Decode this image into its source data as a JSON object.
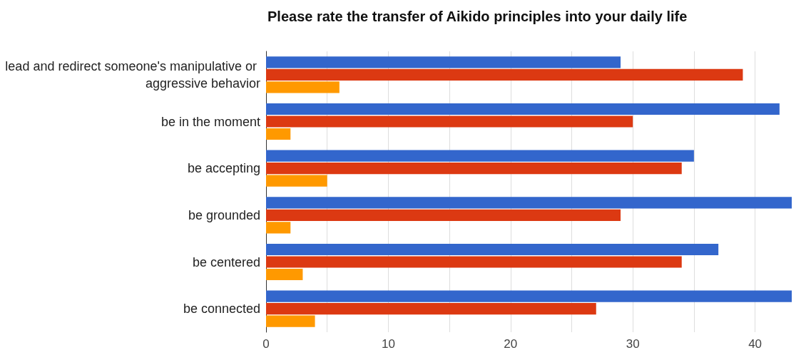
{
  "chart_data": {
    "type": "bar",
    "orientation": "horizontal",
    "title": "Please rate the transfer of Aikido principles into your daily life",
    "categories": [
      "lead and redirect someone's manipulative or aggressive behavior",
      "be in the moment",
      "be accepting",
      "be grounded",
      "be centered",
      "be connected"
    ],
    "series": [
      {
        "color": "#3366cc",
        "values": [
          29,
          42,
          35,
          43,
          37,
          43
        ]
      },
      {
        "color": "#dc3912",
        "values": [
          39,
          30,
          34,
          29,
          34,
          27
        ]
      },
      {
        "color": "#ff9900",
        "values": [
          6,
          2,
          5,
          2,
          3,
          4
        ]
      }
    ],
    "xlim": [
      0,
      43
    ],
    "xticks": [
      0,
      {
        "value": 5,
        "label": null
      },
      10,
      {
        "value": 15,
        "label": null
      },
      20,
      {
        "value": 25,
        "label": null
      },
      30,
      {
        "value": 35,
        "label": null
      },
      40
    ],
    "grid": "x"
  }
}
